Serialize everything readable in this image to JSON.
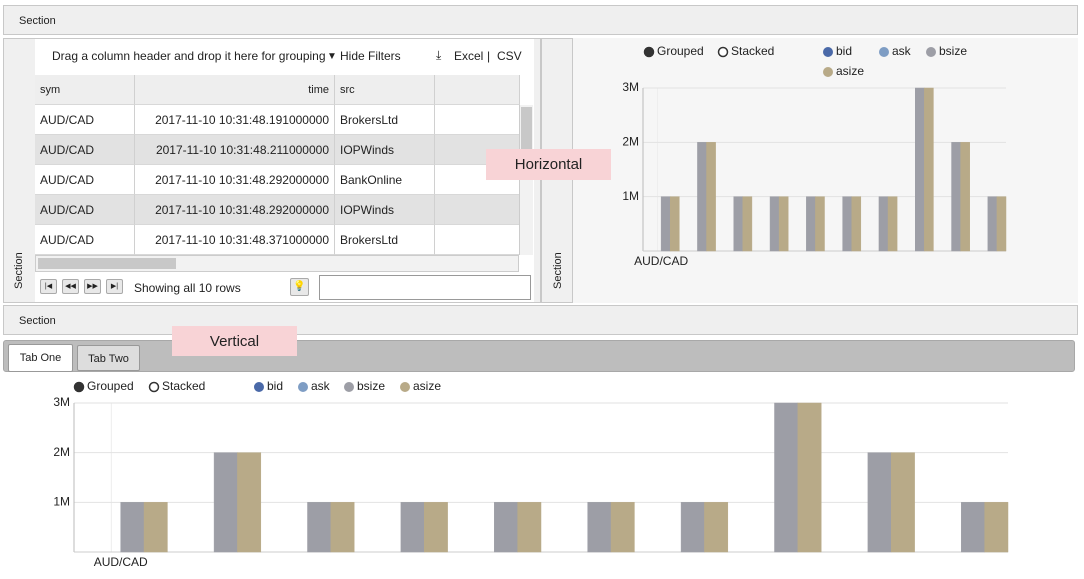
{
  "sections": {
    "top": "Section",
    "left": "Section",
    "middle": "Section",
    "bottom": "Section"
  },
  "grid": {
    "group_hint": "Drag a column header and drop it here for grouping",
    "hide_filters": "Hide Filters",
    "excel": "Excel",
    "separator": "|",
    "csv": "CSV",
    "columns": [
      "sym",
      "time",
      "src"
    ],
    "rows": [
      [
        "AUD/CAD",
        "2017-11-10 10:31:48.191000000",
        "BrokersLtd"
      ],
      [
        "AUD/CAD",
        "2017-11-10 10:31:48.211000000",
        "IOPWinds"
      ],
      [
        "AUD/CAD",
        "2017-11-10 10:31:48.292000000",
        "BankOnline"
      ],
      [
        "AUD/CAD",
        "2017-11-10 10:31:48.292000000",
        "IOPWinds"
      ],
      [
        "AUD/CAD",
        "2017-11-10 10:31:48.371000000",
        "BrokersLtd"
      ]
    ],
    "status": "Showing all 10 rows"
  },
  "labels": {
    "horizontal": "Horizontal",
    "vertical": "Vertical"
  },
  "tabs": [
    "Tab One",
    "Tab Two"
  ],
  "chart_data": [
    {
      "type": "bar",
      "modes": [
        "Grouped",
        "Stacked"
      ],
      "categories": [
        "AUD/CAD",
        null,
        null,
        null,
        null,
        null,
        null,
        null,
        null,
        null
      ],
      "series": [
        {
          "name": "bid",
          "color": "#4a69a8",
          "values": [
            0,
            0,
            0,
            0,
            0,
            0,
            0,
            0,
            0,
            0
          ]
        },
        {
          "name": "ask",
          "color": "#7e9dc4",
          "values": [
            0,
            0,
            0,
            0,
            0,
            0,
            0,
            0,
            0,
            0
          ]
        },
        {
          "name": "bsize",
          "color": "#9d9ea6",
          "values": [
            1000000,
            2000000,
            1000000,
            1000000,
            1000000,
            1000000,
            1000000,
            3000000,
            2000000,
            1000000
          ]
        },
        {
          "name": "asize",
          "color": "#b8aa88",
          "values": [
            1000000,
            2000000,
            1000000,
            1000000,
            1000000,
            1000000,
            1000000,
            3000000,
            2000000,
            1000000
          ]
        }
      ],
      "ylim": [
        0,
        3000000
      ],
      "yticks": [
        {
          "value": 1000000,
          "label": "1M"
        },
        {
          "value": 2000000,
          "label": "2M"
        },
        {
          "value": 3000000,
          "label": "3M"
        }
      ]
    },
    {
      "type": "bar",
      "modes": [
        "Grouped",
        "Stacked"
      ],
      "categories": [
        "AUD/CAD",
        null,
        null,
        null,
        null,
        null,
        null,
        null,
        null,
        null
      ],
      "series": [
        {
          "name": "bid",
          "color": "#4a69a8",
          "values": [
            0,
            0,
            0,
            0,
            0,
            0,
            0,
            0,
            0,
            0
          ]
        },
        {
          "name": "ask",
          "color": "#7e9dc4",
          "values": [
            0,
            0,
            0,
            0,
            0,
            0,
            0,
            0,
            0,
            0
          ]
        },
        {
          "name": "bsize",
          "color": "#9d9ea6",
          "values": [
            1000000,
            2000000,
            1000000,
            1000000,
            1000000,
            1000000,
            1000000,
            3000000,
            2000000,
            1000000
          ]
        },
        {
          "name": "asize",
          "color": "#b8aa88",
          "values": [
            1000000,
            2000000,
            1000000,
            1000000,
            1000000,
            1000000,
            1000000,
            3000000,
            2000000,
            1000000
          ]
        }
      ],
      "ylim": [
        0,
        3000000
      ],
      "yticks": [
        {
          "value": 1000000,
          "label": "1M"
        },
        {
          "value": 2000000,
          "label": "2M"
        },
        {
          "value": 3000000,
          "label": "3M"
        }
      ]
    }
  ]
}
